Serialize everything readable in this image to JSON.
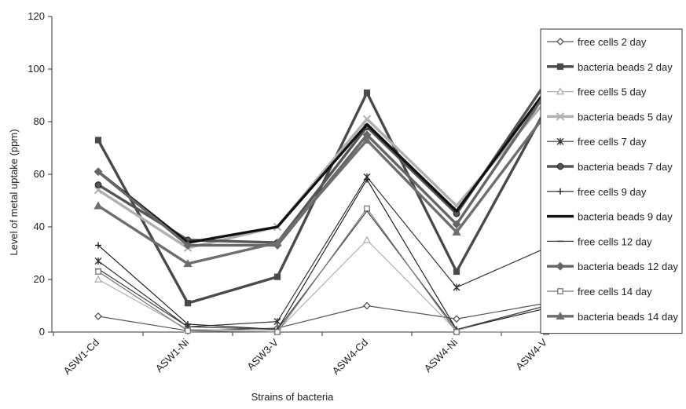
{
  "chart_data": {
    "type": "line",
    "title": "",
    "xlabel": "Strains of bacteria",
    "ylabel": "Level of metal uptake (ppm)",
    "ylim": [
      0,
      120
    ],
    "yticks": [
      0,
      20,
      40,
      60,
      80,
      100,
      120
    ],
    "grid": false,
    "legend_position": "right",
    "categories": [
      "ASW1-Cd",
      "ASW1-Ni",
      "ASW3-V",
      "ASW4-Cd",
      "ASW4-Ni",
      "ASW4-V"
    ],
    "series": [
      {
        "name": "free cells 2 day",
        "values": [
          6,
          0.5,
          1.5,
          10,
          5,
          11
        ],
        "color": "#555555",
        "marker": "diamond-open",
        "thick": false
      },
      {
        "name": "bacteria beads 2 day",
        "values": [
          73,
          11,
          21,
          91,
          23,
          85
        ],
        "color": "#4a4a4a",
        "marker": "square-filled",
        "thick": true
      },
      {
        "name": "free cells 5 day",
        "values": [
          20,
          1,
          0.5,
          35,
          0.5,
          10
        ],
        "color": "#b0b0b0",
        "marker": "triangle-open",
        "thick": false
      },
      {
        "name": "bacteria beads 5 day",
        "values": [
          54,
          32,
          40,
          81,
          48,
          88
        ],
        "color": "#b0b0b0",
        "marker": "x",
        "thick": true
      },
      {
        "name": "free cells 7 day",
        "values": [
          27,
          2,
          4,
          59,
          17,
          32
        ],
        "color": "#333333",
        "marker": "star",
        "thick": false
      },
      {
        "name": "bacteria beads 7 day",
        "values": [
          56,
          35,
          34,
          78,
          45,
          95
        ],
        "color": "#555555",
        "marker": "circle-filled",
        "thick": true
      },
      {
        "name": "free cells 9 day",
        "values": [
          33,
          3,
          1,
          58,
          1,
          9
        ],
        "color": "#222222",
        "marker": "plus",
        "thick": false
      },
      {
        "name": "bacteria beads 9 day",
        "values": [
          61,
          34,
          40,
          79,
          46,
          92
        ],
        "color": "#111111",
        "marker": "none",
        "thick": true
      },
      {
        "name": "free cells 12 day",
        "values": [
          24,
          2,
          1,
          46,
          1,
          10
        ],
        "color": "#444444",
        "marker": "dash",
        "thick": false
      },
      {
        "name": "bacteria beads 12 day",
        "values": [
          61,
          33,
          33,
          75,
          41,
          91
        ],
        "color": "#666666",
        "marker": "diamond-filled",
        "thick": true
      },
      {
        "name": "free cells 14 day",
        "values": [
          23,
          0.5,
          0,
          47,
          0,
          0
        ],
        "color": "#777777",
        "marker": "square-open",
        "thick": false
      },
      {
        "name": "bacteria beads 14 day",
        "values": [
          48,
          26,
          34,
          73,
          38,
          83
        ],
        "color": "#6e6e6e",
        "marker": "triangle-filled",
        "thick": true
      }
    ]
  }
}
